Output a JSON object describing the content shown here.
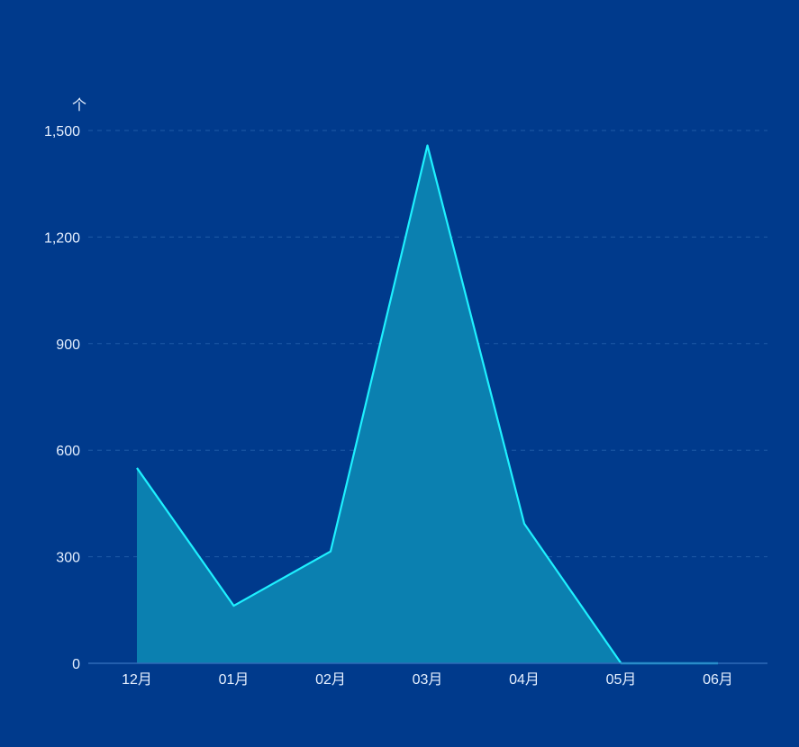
{
  "chart_data": {
    "type": "area",
    "title": "",
    "xlabel": "",
    "ylabel": "个",
    "categories": [
      "12月",
      "01月",
      "02月",
      "03月",
      "04月",
      "05月",
      "06月"
    ],
    "series": [
      {
        "values": [
          550,
          162,
          315,
          1458,
          393,
          0,
          0
        ]
      }
    ],
    "ylim": [
      0,
      1500
    ],
    "yticks": [
      0,
      300,
      600,
      900,
      1200,
      1500
    ],
    "ytick_labels": [
      "0",
      "300",
      "600",
      "900",
      "1,200",
      "1,500"
    ],
    "grid": true,
    "colors": {
      "background": "#003a8c",
      "line": "#1ef0ff",
      "area": "#0b80b0",
      "grid": "#1e5aa6",
      "axis": "#2f6bb8",
      "text": "#e6f0ff"
    }
  }
}
